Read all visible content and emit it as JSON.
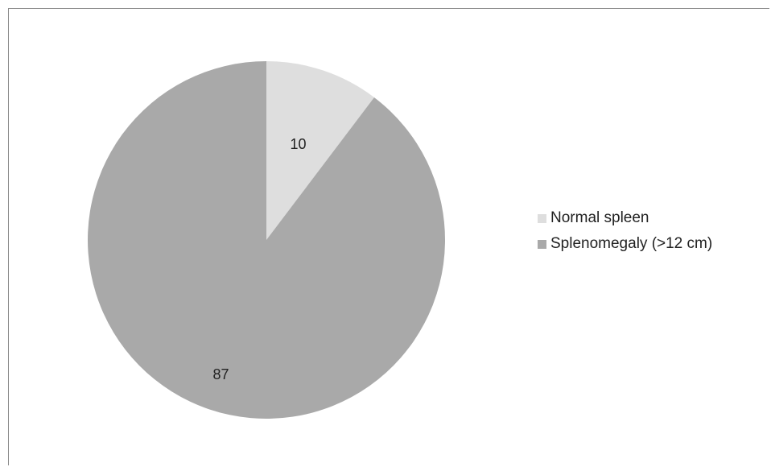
{
  "chart_data": {
    "type": "pie",
    "title": "",
    "slices": [
      {
        "label": "Normal spleen",
        "value": 10,
        "color": "#dedede"
      },
      {
        "label": "Splenomegaly (>12 cm)",
        "value": 87,
        "color": "#a9a9a9"
      }
    ],
    "data_labels": [
      "10",
      "87"
    ],
    "legend_position": "right"
  }
}
